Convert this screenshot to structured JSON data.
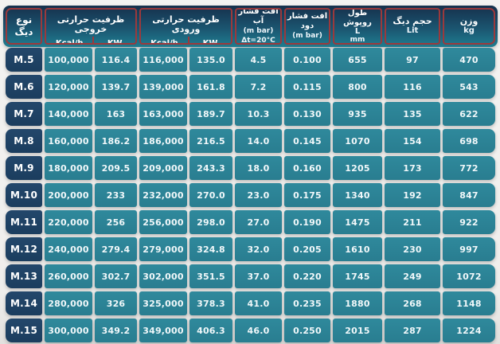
{
  "colors": {
    "page-bg": "#efeeec",
    "hdr-top": "#16304c",
    "hdr-bot": "#1f7d90",
    "hdr-border": "#9b393c",
    "cell-teal": "#297d90",
    "cell-navy": "#1b3d5e"
  },
  "table": {
    "header": {
      "type": {
        "line1": "نوع",
        "line2": "دیگ"
      },
      "output_group": {
        "title": "ظرفیت حرارتی خروجی",
        "unit1": "Kcal/h",
        "unit2": "KW"
      },
      "input_group": {
        "title": "ظرفیت حرارتی ورودی",
        "unit1": "Kcal/h",
        "unit2": "KW"
      },
      "water_drop": {
        "line1": "افت فشار آب",
        "line2": "(m bar)",
        "line3": "Δt=20°C"
      },
      "flue_drop": {
        "line1": "افت فشار دود",
        "line2": "(m bar)"
      },
      "length": {
        "line1": "طول روپوش",
        "line2": "L",
        "line3": "mm"
      },
      "volume": {
        "line1": "حجم دیگ",
        "line2": "Lit"
      },
      "weight": {
        "line1": "وزن",
        "line2": "kg"
      }
    },
    "rows": [
      {
        "model": "M.5",
        "out_kcal": "100,000",
        "out_kw": "116.4",
        "in_kcal": "116,000",
        "in_kw": "135.0",
        "water": "4.5",
        "flue": "0.100",
        "length": "655",
        "volume": "97",
        "weight": "470"
      },
      {
        "model": "M.6",
        "out_kcal": "120,000",
        "out_kw": "139.7",
        "in_kcal": "139,000",
        "in_kw": "161.8",
        "water": "7.2",
        "flue": "0.115",
        "length": "800",
        "volume": "116",
        "weight": "543"
      },
      {
        "model": "M.7",
        "out_kcal": "140,000",
        "out_kw": "163",
        "in_kcal": "163,000",
        "in_kw": "189.7",
        "water": "10.3",
        "flue": "0.130",
        "length": "935",
        "volume": "135",
        "weight": "622"
      },
      {
        "model": "M.8",
        "out_kcal": "160,000",
        "out_kw": "186.2",
        "in_kcal": "186,000",
        "in_kw": "216.5",
        "water": "14.0",
        "flue": "0.145",
        "length": "1070",
        "volume": "154",
        "weight": "698"
      },
      {
        "model": "M.9",
        "out_kcal": "180,000",
        "out_kw": "209.5",
        "in_kcal": "209,000",
        "in_kw": "243.3",
        "water": "18.0",
        "flue": "0.160",
        "length": "1205",
        "volume": "173",
        "weight": "772"
      },
      {
        "model": "M.10",
        "out_kcal": "200,000",
        "out_kw": "233",
        "in_kcal": "232,000",
        "in_kw": "270.0",
        "water": "23.0",
        "flue": "0.175",
        "length": "1340",
        "volume": "192",
        "weight": "847"
      },
      {
        "model": "M.11",
        "out_kcal": "220,000",
        "out_kw": "256",
        "in_kcal": "256,000",
        "in_kw": "298.0",
        "water": "27.0",
        "flue": "0.190",
        "length": "1475",
        "volume": "211",
        "weight": "922"
      },
      {
        "model": "M.12",
        "out_kcal": "240,000",
        "out_kw": "279.4",
        "in_kcal": "279,000",
        "in_kw": "324.8",
        "water": "32.0",
        "flue": "0.205",
        "length": "1610",
        "volume": "230",
        "weight": "997"
      },
      {
        "model": "M.13",
        "out_kcal": "260,000",
        "out_kw": "302.7",
        "in_kcal": "302,000",
        "in_kw": "351.5",
        "water": "37.0",
        "flue": "0.220",
        "length": "1745",
        "volume": "249",
        "weight": "1072"
      },
      {
        "model": "M.14",
        "out_kcal": "280,000",
        "out_kw": "326",
        "in_kcal": "325,000",
        "in_kw": "378.3",
        "water": "41.0",
        "flue": "0.235",
        "length": "1880",
        "volume": "268",
        "weight": "1148"
      },
      {
        "model": "M.15",
        "out_kcal": "300,000",
        "out_kw": "349.2",
        "in_kcal": "349,000",
        "in_kw": "406.3",
        "water": "46.0",
        "flue": "0.250",
        "length": "2015",
        "volume": "287",
        "weight": "1224"
      }
    ]
  }
}
